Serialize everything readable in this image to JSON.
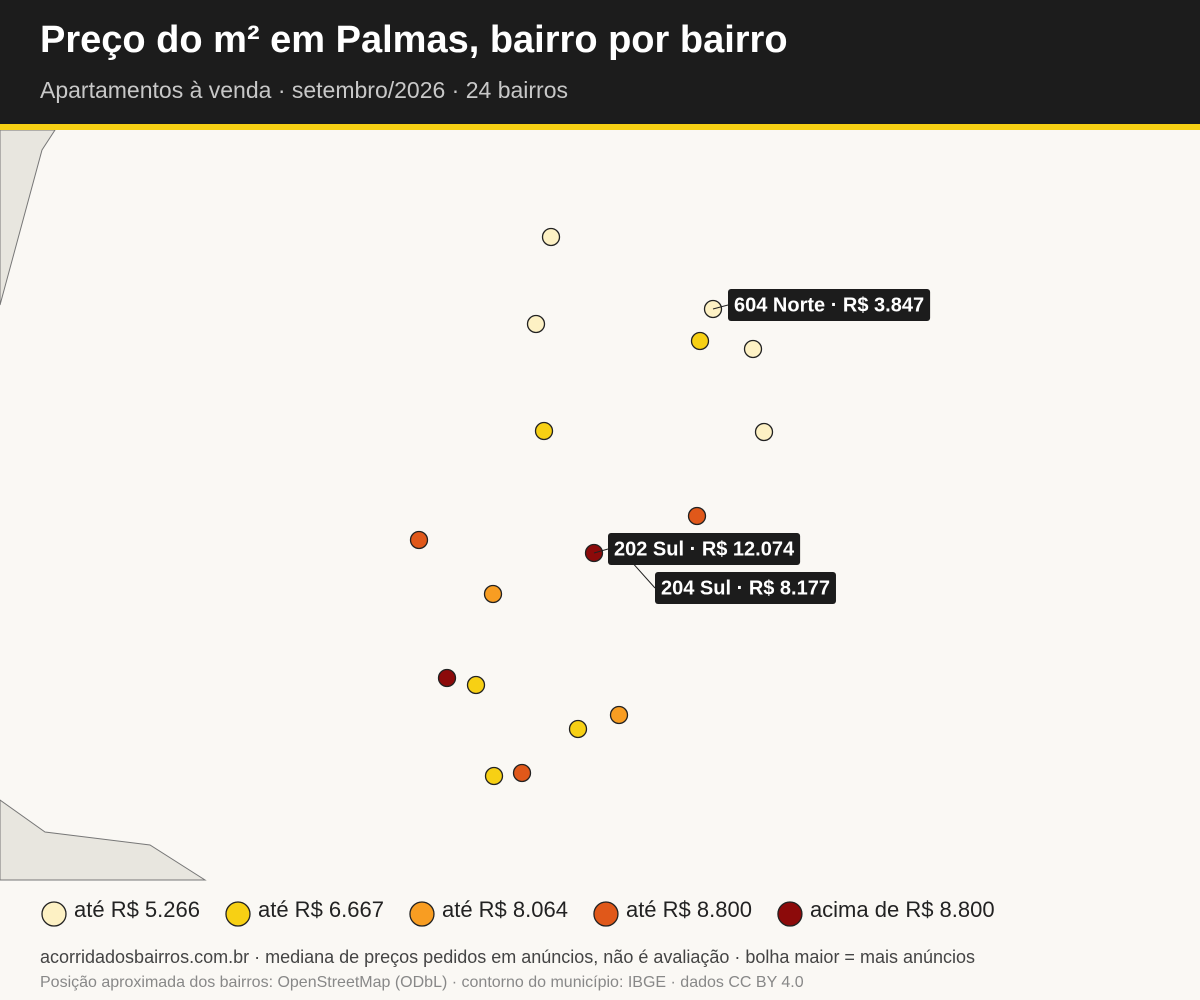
{
  "header": {
    "title": "Preço do m² em Palmas, bairro por bairro",
    "subtitle": "Apartamentos à venda · setembro/2026 · 24 bairros"
  },
  "annotations": [
    "604 Norte · R$ 3.847",
    "202 Sul · R$ 12.074",
    "204 Sul · R$ 8.177"
  ],
  "legend": [
    {
      "label": "até R$ 5.266",
      "color": "#fdf1c4"
    },
    {
      "label": "até R$ 6.667",
      "color": "#f7d014"
    },
    {
      "label": "até R$ 8.064",
      "color": "#f89d22"
    },
    {
      "label": "até R$ 8.800",
      "color": "#e0581a"
    },
    {
      "label": "acima de R$ 8.800",
      "color": "#8c0a0a"
    }
  ],
  "footer": {
    "source": "acorridadosbairros.com.br · mediana de preços pedidos em anúncios, não é avaliação · bolha maior = mais anúncios",
    "credits": "Posição aproximada dos bairros: OpenStreetMap (ODbL) · contorno do município: IBGE · dados CC BY 4.0"
  }
}
